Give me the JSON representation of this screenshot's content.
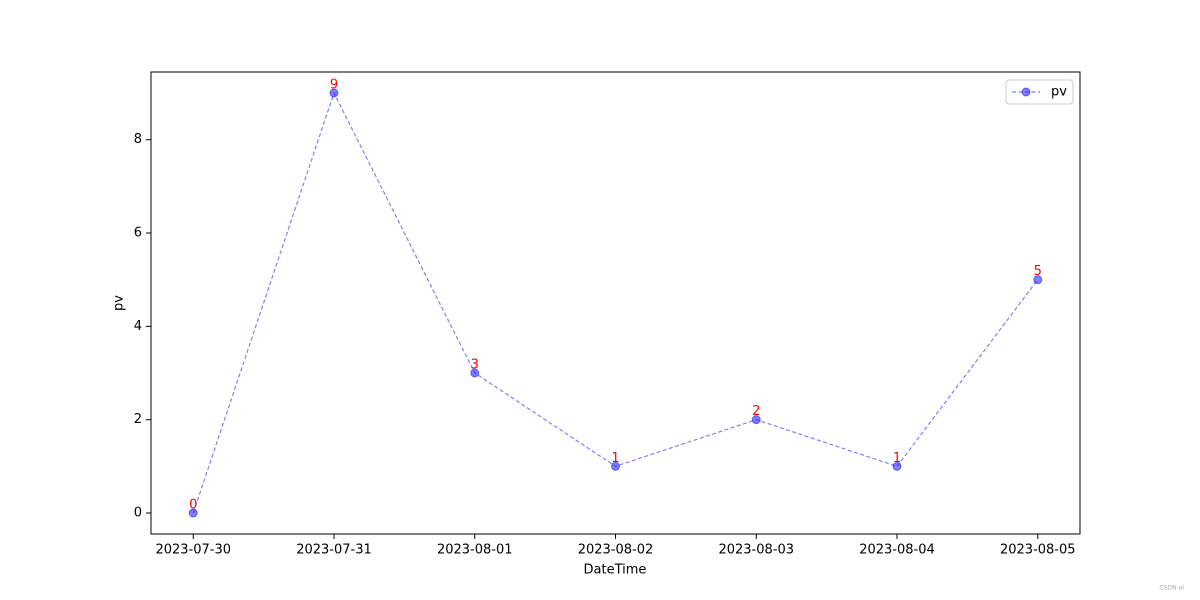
{
  "chart_data": {
    "type": "line",
    "x_label": "DateTime",
    "y_label": "pv",
    "categories": [
      "2023-07-30",
      "2023-07-31",
      "2023-08-01",
      "2023-08-02",
      "2023-08-03",
      "2023-08-04",
      "2023-08-05"
    ],
    "series": [
      {
        "name": "pv",
        "color": "#0000ff",
        "values": [
          0,
          9,
          3,
          1,
          2,
          1,
          5
        ]
      }
    ],
    "alpha": 0.5,
    "line_style": "dashed",
    "marker": "circle",
    "label_color": "#ff0000",
    "ylim": [
      -0.45,
      9.45
    ],
    "yticks": [
      0,
      2,
      4,
      6,
      8
    ],
    "grid": false,
    "legend": "upper right",
    "watermark": "CSDN-ai"
  }
}
